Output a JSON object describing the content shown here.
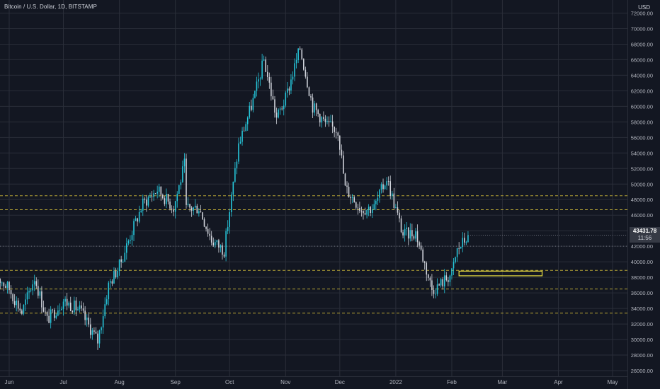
{
  "header": {
    "symbol_title": "Bitcoin / U.S. Dollar, 1D, BITSTAMP",
    "currency": "USD"
  },
  "price_badge": {
    "price": "43431.78",
    "countdown": "11:56",
    "hidden_label": "42000.00"
  },
  "colors": {
    "background": "#131722",
    "up_candle": "#26c6da",
    "down_candle": "#d1d4dc",
    "grid": "#2a2e39",
    "level_line": "#c8b439",
    "zone_box": "#f0e442",
    "axis_text": "#b2b5be"
  },
  "chart_data": {
    "type": "candlestick",
    "title": "Bitcoin / U.S. Dollar, 1D, BITSTAMP",
    "ylabel": "USD",
    "ylim": [
      24500,
      73500
    ],
    "y_ticks": [
      "26000.00",
      "28000.00",
      "30000.00",
      "32000.00",
      "34000.00",
      "36000.00",
      "38000.00",
      "40000.00",
      "42000.00",
      "44000.00",
      "46000.00",
      "48000.00",
      "50000.00",
      "52000.00",
      "54000.00",
      "56000.00",
      "58000.00",
      "60000.00",
      "62000.00",
      "64000.00",
      "66000.00",
      "68000.00",
      "70000.00",
      "72000.00"
    ],
    "x_ticks": [
      {
        "label": "Jun",
        "date": "2021-06-01"
      },
      {
        "label": "Jul",
        "date": "2021-07-01"
      },
      {
        "label": "Aug",
        "date": "2021-08-01"
      },
      {
        "label": "Sep",
        "date": "2021-09-01"
      },
      {
        "label": "Oct",
        "date": "2021-10-01"
      },
      {
        "label": "Nov",
        "date": "2021-11-01"
      },
      {
        "label": "Dec",
        "date": "2021-12-01"
      },
      {
        "label": "2022",
        "date": "2022-01-01"
      },
      {
        "label": "Feb",
        "date": "2022-02-01"
      },
      {
        "label": "Mar",
        "date": "2022-03-01"
      },
      {
        "label": "Apr",
        "date": "2022-04-01"
      },
      {
        "label": "May",
        "date": "2022-05-01"
      }
    ],
    "close_anchors": [
      {
        "date": "2021-05-24",
        "close": 38500
      },
      {
        "date": "2021-06-01",
        "close": 36500
      },
      {
        "date": "2021-06-08",
        "close": 33500
      },
      {
        "date": "2021-06-15",
        "close": 38000
      },
      {
        "date": "2021-06-22",
        "close": 32500
      },
      {
        "date": "2021-07-01",
        "close": 35000
      },
      {
        "date": "2021-07-10",
        "close": 33800
      },
      {
        "date": "2021-07-20",
        "close": 29800
      },
      {
        "date": "2021-07-26",
        "close": 37000
      },
      {
        "date": "2021-08-01",
        "close": 39500
      },
      {
        "date": "2021-08-08",
        "close": 44000
      },
      {
        "date": "2021-08-14",
        "close": 47500
      },
      {
        "date": "2021-08-22",
        "close": 49300
      },
      {
        "date": "2021-08-31",
        "close": 47000
      },
      {
        "date": "2021-09-06",
        "close": 52500
      },
      {
        "date": "2021-09-07",
        "close": 46800
      },
      {
        "date": "2021-09-14",
        "close": 47000
      },
      {
        "date": "2021-09-21",
        "close": 42800
      },
      {
        "date": "2021-09-28",
        "close": 41500
      },
      {
        "date": "2021-10-06",
        "close": 55000
      },
      {
        "date": "2021-10-15",
        "close": 61500
      },
      {
        "date": "2021-10-20",
        "close": 66000
      },
      {
        "date": "2021-10-27",
        "close": 58500
      },
      {
        "date": "2021-11-01",
        "close": 61000
      },
      {
        "date": "2021-11-09",
        "close": 67500
      },
      {
        "date": "2021-11-16",
        "close": 60000
      },
      {
        "date": "2021-11-24",
        "close": 57500
      },
      {
        "date": "2021-11-30",
        "close": 57000
      },
      {
        "date": "2021-12-04",
        "close": 49500
      },
      {
        "date": "2021-12-13",
        "close": 46800
      },
      {
        "date": "2021-12-20",
        "close": 47000
      },
      {
        "date": "2021-12-27",
        "close": 50800
      },
      {
        "date": "2022-01-05",
        "close": 43500
      },
      {
        "date": "2022-01-12",
        "close": 43800
      },
      {
        "date": "2022-01-21",
        "close": 36500
      },
      {
        "date": "2022-01-24",
        "close": 36800
      },
      {
        "date": "2022-02-01",
        "close": 38500
      },
      {
        "date": "2022-02-04",
        "close": 41500
      },
      {
        "date": "2022-02-10",
        "close": 43400
      }
    ],
    "last_price": 43431.78,
    "horizontal_levels": [
      {
        "value": 48500,
        "style": "dashed",
        "color": "#c8b439"
      },
      {
        "value": 46700,
        "style": "dashed",
        "color": "#c8b439"
      },
      {
        "value": 38900,
        "style": "dashed",
        "color": "#c8b439"
      },
      {
        "value": 36500,
        "style": "dashed",
        "color": "#c8b439"
      },
      {
        "value": 33400,
        "style": "dashed",
        "color": "#c8b439"
      },
      {
        "value": 42000,
        "style": "dotted",
        "color": "#787b86"
      }
    ],
    "zone": {
      "date_from": "2022-02-05",
      "date_to": "2022-03-23",
      "y_from": 38200,
      "y_to": 38800,
      "color": "#f0e442"
    },
    "grid": true
  }
}
